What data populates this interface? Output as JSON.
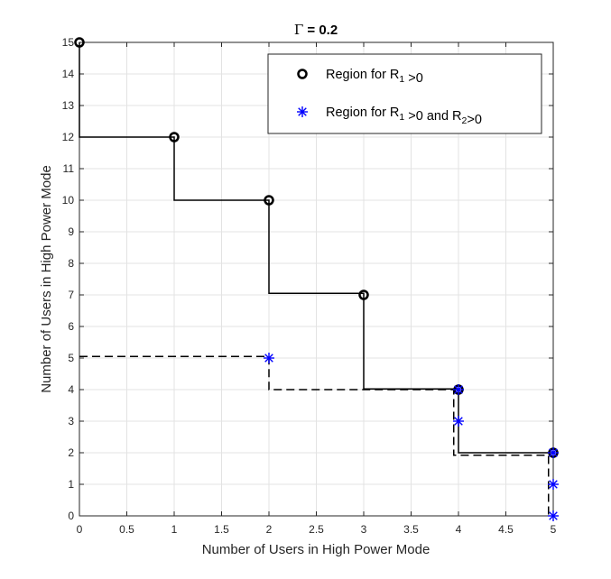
{
  "chart_data": {
    "type": "line",
    "title": {
      "symbol": "Γ",
      "text": " = 0.2"
    },
    "xlabel": "Number of Users in High Power Mode",
    "ylabel": "Number of Users in High Power Mode",
    "xlim": [
      0,
      5
    ],
    "ylim": [
      0,
      15
    ],
    "xticks": [
      0,
      0.5,
      1,
      1.5,
      2,
      2.5,
      3,
      3.5,
      4,
      4.5,
      5
    ],
    "xtick_labels": [
      "0",
      "0.5",
      "1",
      "1.5",
      "2",
      "2.5",
      "3",
      "3.5",
      "4",
      "4.5",
      "5"
    ],
    "yticks": [
      0,
      1,
      2,
      3,
      4,
      5,
      6,
      7,
      8,
      9,
      10,
      11,
      12,
      13,
      14,
      15
    ],
    "ytick_labels": [
      "0",
      "1",
      "2",
      "3",
      "4",
      "5",
      "6",
      "7",
      "8",
      "9",
      "10",
      "11",
      "12",
      "13",
      "14",
      "15"
    ],
    "grid": true,
    "legend_position": "top-right",
    "series": [
      {
        "name": "Region for R1 >0",
        "legend_parts": [
          {
            "text": "Region for R",
            "sub": false
          },
          {
            "text": "1",
            "sub": true
          },
          {
            "text": " >0",
            "sub": false
          }
        ],
        "marker": "circle",
        "color": "#000000",
        "line_style": "solid",
        "points": [
          [
            0,
            15
          ],
          [
            1,
            12
          ],
          [
            2,
            10
          ],
          [
            3,
            7
          ],
          [
            4,
            4
          ],
          [
            5,
            2
          ]
        ],
        "boundary": [
          [
            0,
            15
          ],
          [
            0,
            12
          ],
          [
            1,
            12
          ],
          [
            1,
            10
          ],
          [
            2,
            10
          ],
          [
            2,
            7.05
          ],
          [
            3,
            7.05
          ],
          [
            3,
            4.02
          ],
          [
            4,
            4.02
          ],
          [
            4,
            2
          ],
          [
            5,
            2
          ]
        ]
      },
      {
        "name": "Region for R1 >0 and R2>0",
        "legend_parts": [
          {
            "text": "Region for R",
            "sub": false
          },
          {
            "text": "1",
            "sub": true
          },
          {
            "text": " >0 and R",
            "sub": false
          },
          {
            "text": "2",
            "sub": true
          },
          {
            "text": ">0",
            "sub": false
          }
        ],
        "marker": "asterisk",
        "color": "#0000ff",
        "line_color": "#000000",
        "line_style": "dashed",
        "points": [
          [
            2,
            5
          ],
          [
            4,
            4
          ],
          [
            4,
            3
          ],
          [
            5,
            2
          ],
          [
            5,
            1
          ],
          [
            5,
            0
          ]
        ],
        "boundary": [
          [
            0,
            5.05
          ],
          [
            2,
            5.05
          ],
          [
            2,
            4
          ],
          [
            3.95,
            4
          ],
          [
            3.95,
            1.92
          ],
          [
            4.95,
            1.92
          ],
          [
            4.95,
            0
          ]
        ]
      }
    ]
  }
}
